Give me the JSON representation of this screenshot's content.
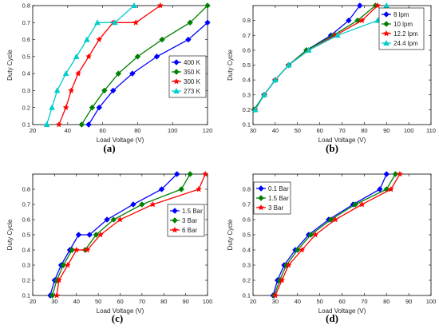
{
  "chart_data": [
    {
      "type": "line",
      "caption": "(a)",
      "xlabel": "Load Voltage (V)",
      "ylabel": "Duty Cycle",
      "xlim": [
        20,
        120
      ],
      "ylim": [
        0.1,
        0.8
      ],
      "xticks": [
        20,
        40,
        60,
        80,
        100,
        120
      ],
      "yticks": [
        0.1,
        0.2,
        0.3,
        0.4,
        0.5,
        0.6,
        0.7,
        0.8
      ],
      "legend_position": "lower-right",
      "series": [
        {
          "name": "400 K",
          "color": "#0000ff",
          "marker": "diamond",
          "x": [
            52,
            58,
            66,
            77,
            91,
            109,
            120
          ],
          "y": [
            0.1,
            0.2,
            0.3,
            0.4,
            0.5,
            0.6,
            0.7
          ]
        },
        {
          "name": "350 K",
          "color": "#008000",
          "marker": "diamond",
          "x": [
            48,
            54,
            61,
            69,
            80,
            94,
            110,
            120
          ],
          "y": [
            0.1,
            0.2,
            0.3,
            0.4,
            0.5,
            0.6,
            0.7,
            0.8
          ]
        },
        {
          "name": "300 K",
          "color": "#ff0000",
          "marker": "star",
          "x": [
            35,
            39,
            42,
            46,
            52,
            58,
            66,
            79,
            93
          ],
          "y": [
            0.1,
            0.2,
            0.3,
            0.4,
            0.5,
            0.6,
            0.7,
            0.7,
            0.8
          ]
        },
        {
          "name": "273 K",
          "color": "#00cccc",
          "marker": "triangle",
          "x": [
            28,
            31,
            34,
            39,
            45,
            51,
            57,
            67,
            78
          ],
          "y": [
            0.1,
            0.2,
            0.3,
            0.4,
            0.5,
            0.6,
            0.7,
            0.7,
            0.8
          ]
        }
      ]
    },
    {
      "type": "line",
      "caption": "(b)",
      "xlabel": "Load Voltage (V)",
      "ylabel": "Duty Cycle",
      "xlim": [
        30,
        110
      ],
      "ylim": [
        0.1,
        0.9
      ],
      "xticks": [
        30,
        40,
        50,
        60,
        70,
        80,
        90,
        100,
        110
      ],
      "yticks": [
        0.1,
        0.2,
        0.3,
        0.4,
        0.5,
        0.6,
        0.7,
        0.8
      ],
      "legend_position": "top-right",
      "series": [
        {
          "name": "8 lpm",
          "color": "#0000ff",
          "marker": "diamond",
          "x": [
            30.5,
            35,
            40,
            46,
            54,
            65,
            73,
            78
          ],
          "y": [
            0.2,
            0.3,
            0.4,
            0.5,
            0.6,
            0.7,
            0.8,
            0.9
          ]
        },
        {
          "name": "10 lpm",
          "color": "#008000",
          "marker": "diamond",
          "x": [
            30.5,
            35,
            40,
            46,
            54,
            66,
            77,
            85
          ],
          "y": [
            0.2,
            0.3,
            0.4,
            0.5,
            0.6,
            0.7,
            0.8,
            0.9
          ]
        },
        {
          "name": "12.2 lpm",
          "color": "#ff0000",
          "marker": "star",
          "x": [
            31,
            35,
            40,
            46,
            55,
            67,
            79,
            86
          ],
          "y": [
            0.2,
            0.3,
            0.4,
            0.5,
            0.6,
            0.7,
            0.8,
            0.9
          ]
        },
        {
          "name": "24.4 lpm",
          "color": "#00cccc",
          "marker": "triangle",
          "x": [
            31,
            35,
            40,
            46,
            55,
            68,
            86,
            90
          ],
          "y": [
            0.2,
            0.3,
            0.4,
            0.5,
            0.6,
            0.7,
            0.8,
            0.9
          ]
        }
      ]
    },
    {
      "type": "line",
      "caption": "(c)",
      "xlabel": "Load Voltage (V)",
      "ylabel": "Duty Cycle",
      "xlim": [
        20,
        100
      ],
      "ylim": [
        0.1,
        0.9
      ],
      "xticks": [
        20,
        30,
        40,
        50,
        60,
        70,
        80,
        90,
        100
      ],
      "yticks": [
        0.1,
        0.2,
        0.3,
        0.4,
        0.5,
        0.6,
        0.7,
        0.8
      ],
      "legend_position": "right",
      "series": [
        {
          "name": "1.5 Bar",
          "color": "#0000ff",
          "marker": "diamond",
          "x": [
            28,
            30,
            33,
            37,
            41,
            46,
            54,
            66,
            79,
            86
          ],
          "y": [
            0.1,
            0.2,
            0.3,
            0.4,
            0.5,
            0.5,
            0.6,
            0.7,
            0.8,
            0.9
          ]
        },
        {
          "name": "3 Bar",
          "color": "#008000",
          "marker": "diamond",
          "x": [
            29,
            31,
            34,
            38,
            44,
            49,
            57,
            70,
            88,
            92
          ],
          "y": [
            0.1,
            0.2,
            0.3,
            0.4,
            0.4,
            0.5,
            0.6,
            0.7,
            0.8,
            0.9
          ]
        },
        {
          "name": "6 Bar",
          "color": "#ff0000",
          "marker": "star",
          "x": [
            31,
            32,
            36,
            40,
            45,
            51,
            60,
            75,
            96,
            99
          ],
          "y": [
            0.1,
            0.2,
            0.3,
            0.4,
            0.4,
            0.5,
            0.6,
            0.7,
            0.8,
            0.9
          ]
        }
      ]
    },
    {
      "type": "line",
      "caption": "(d)",
      "xlabel": "Load Voltage (V)",
      "ylabel": "Duty Cycle",
      "xlim": [
        20,
        100
      ],
      "ylim": [
        0.1,
        0.9
      ],
      "xticks": [
        20,
        30,
        40,
        50,
        60,
        70,
        80,
        90,
        100
      ],
      "yticks": [
        0.1,
        0.2,
        0.3,
        0.4,
        0.5,
        0.6,
        0.7,
        0.8
      ],
      "legend_position": "left",
      "series": [
        {
          "name": "0.1 Bar",
          "color": "#0000ff",
          "marker": "diamond",
          "x": [
            29,
            31,
            34,
            39,
            45,
            54,
            65,
            77,
            80
          ],
          "y": [
            0.1,
            0.2,
            0.3,
            0.4,
            0.5,
            0.6,
            0.7,
            0.8,
            0.9
          ]
        },
        {
          "name": "1.5 Bar",
          "color": "#008000",
          "marker": "diamond",
          "x": [
            29.5,
            32,
            35,
            40,
            46,
            55,
            66,
            80,
            84
          ],
          "y": [
            0.1,
            0.2,
            0.3,
            0.4,
            0.5,
            0.6,
            0.7,
            0.8,
            0.9
          ]
        },
        {
          "name": "3 Bar",
          "color": "#ff0000",
          "marker": "star",
          "x": [
            30,
            33,
            36,
            42,
            48,
            57,
            69,
            82,
            86
          ],
          "y": [
            0.1,
            0.2,
            0.3,
            0.4,
            0.5,
            0.6,
            0.7,
            0.8,
            0.9
          ]
        }
      ]
    }
  ]
}
